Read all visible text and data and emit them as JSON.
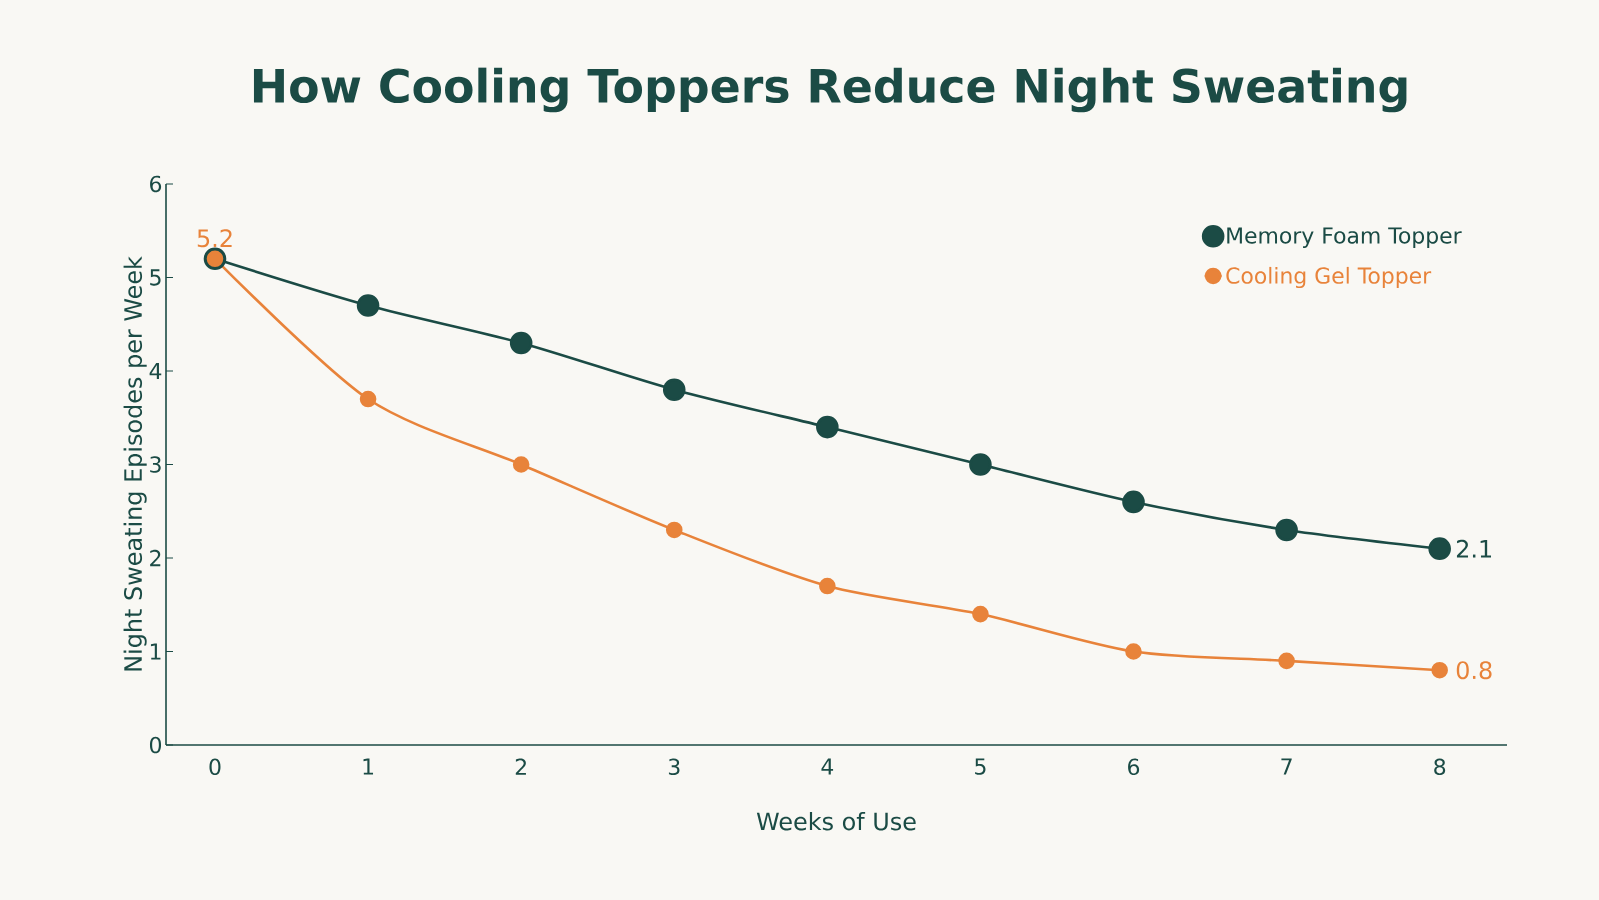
{
  "chart_data": {
    "type": "line",
    "title": "How Cooling Toppers Reduce Night Sweating",
    "xlabel": "Weeks of Use",
    "ylabel": "Night Sweating Episodes per Week",
    "x": [
      0,
      1,
      2,
      3,
      4,
      5,
      6,
      7,
      8
    ],
    "series": [
      {
        "name": "Memory Foam Topper",
        "color": "#1b4b45",
        "values": [
          5.2,
          4.7,
          4.3,
          3.8,
          3.4,
          3.0,
          2.6,
          2.3,
          2.1
        ],
        "value_labels": [
          null,
          null,
          null,
          null,
          null,
          null,
          null,
          null,
          "2.1"
        ]
      },
      {
        "name": "Cooling Gel Topper",
        "color": "#e8833a",
        "values": [
          5.2,
          3.7,
          3.0,
          2.3,
          1.7,
          1.4,
          1.0,
          0.9,
          0.8
        ],
        "value_labels": [
          "5.2",
          null,
          null,
          null,
          null,
          null,
          null,
          null,
          "0.8"
        ]
      }
    ],
    "xlim": [
      -0.32,
      8.44
    ],
    "ylim": [
      0,
      6
    ],
    "xticks": [
      0,
      1,
      2,
      3,
      4,
      5,
      6,
      7,
      8
    ],
    "yticks": [
      0,
      1,
      2,
      3,
      4,
      5,
      6
    ],
    "legend": "top right",
    "marker": "circle",
    "line_style": "solid",
    "grid": false
  }
}
